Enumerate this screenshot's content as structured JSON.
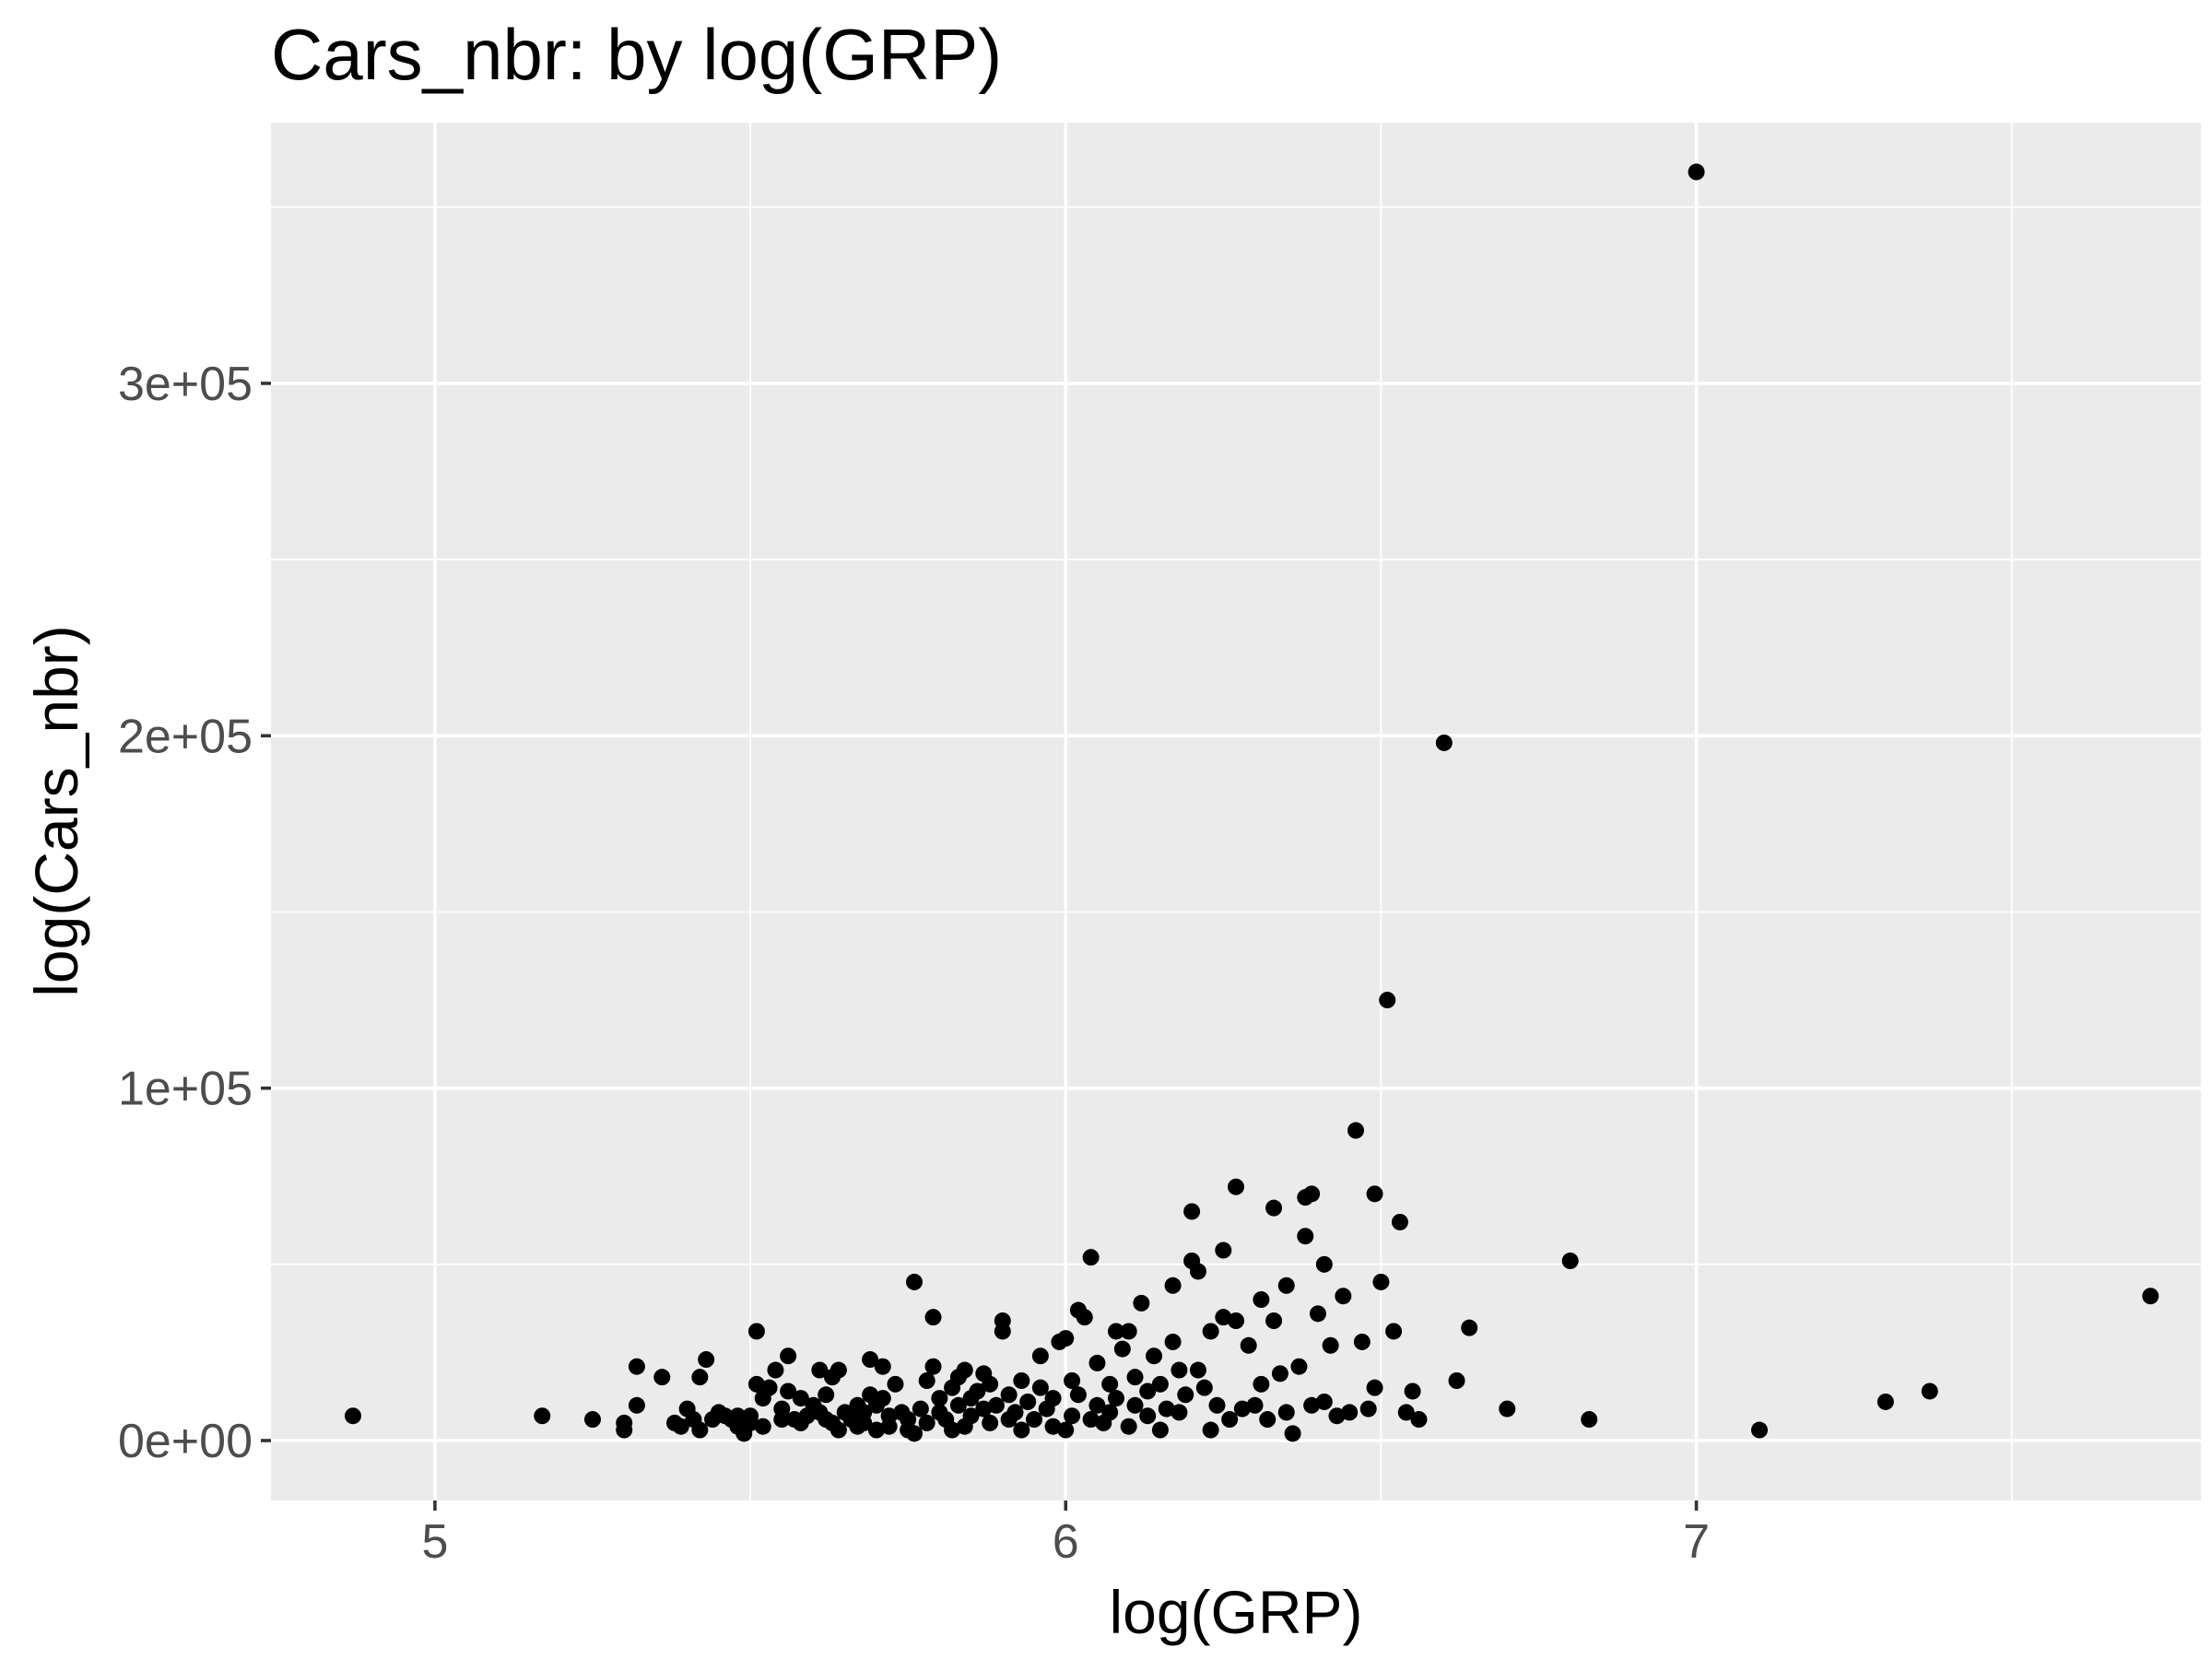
{
  "chart_data": {
    "type": "scatter",
    "title": "Cars_nbr: by log(GRP)",
    "xlabel": "log(GRP)",
    "ylabel": "log(Cars_nbr)",
    "xlim": [
      4.74,
      7.8
    ],
    "ylim": [
      -17000,
      374000
    ],
    "x_ticks": [
      5,
      6,
      7
    ],
    "x_tick_labels": [
      "5",
      "6",
      "7"
    ],
    "y_ticks": [
      0,
      100000,
      200000,
      300000
    ],
    "y_tick_labels": [
      "0e+00",
      "1e+05",
      "2e+05",
      "3e+05"
    ],
    "grid": true,
    "legend": "none",
    "colors": {
      "panel": "#ebebeb",
      "grid": "#ffffff",
      "point": "#000000",
      "tick_text": "#4d4d4d"
    },
    "points": [
      [
        4.87,
        7000
      ],
      [
        5.17,
        7000
      ],
      [
        5.25,
        6000
      ],
      [
        5.3,
        5000
      ],
      [
        5.3,
        3000
      ],
      [
        5.32,
        21000
      ],
      [
        5.32,
        10000
      ],
      [
        5.36,
        18000
      ],
      [
        5.38,
        5000
      ],
      [
        5.39,
        4000
      ],
      [
        5.4,
        9000
      ],
      [
        5.41,
        6000
      ],
      [
        5.42,
        3000
      ],
      [
        5.42,
        18000
      ],
      [
        5.43,
        23000
      ],
      [
        5.44,
        6000
      ],
      [
        5.45,
        8000
      ],
      [
        5.46,
        7000
      ],
      [
        5.47,
        6000
      ],
      [
        5.48,
        4000
      ],
      [
        5.48,
        7000
      ],
      [
        5.49,
        2000
      ],
      [
        5.5,
        5000
      ],
      [
        5.5,
        7000
      ],
      [
        5.51,
        16000
      ],
      [
        5.51,
        31000
      ],
      [
        5.52,
        4000
      ],
      [
        5.52,
        12000
      ],
      [
        5.53,
        15000
      ],
      [
        5.54,
        20000
      ],
      [
        5.55,
        6000
      ],
      [
        5.55,
        9000
      ],
      [
        5.56,
        24000
      ],
      [
        5.56,
        14000
      ],
      [
        5.57,
        6000
      ],
      [
        5.58,
        5000
      ],
      [
        5.58,
        12000
      ],
      [
        5.59,
        7000
      ],
      [
        5.6,
        10000
      ],
      [
        5.61,
        20000
      ],
      [
        5.61,
        8000
      ],
      [
        5.62,
        6000
      ],
      [
        5.62,
        13000
      ],
      [
        5.63,
        5000
      ],
      [
        5.63,
        18000
      ],
      [
        5.64,
        20000
      ],
      [
        5.64,
        3000
      ],
      [
        5.65,
        8000
      ],
      [
        5.66,
        6000
      ],
      [
        5.67,
        4000
      ],
      [
        5.67,
        10000
      ],
      [
        5.68,
        5000
      ],
      [
        5.68,
        8000
      ],
      [
        5.69,
        23000
      ],
      [
        5.69,
        13000
      ],
      [
        5.7,
        3000
      ],
      [
        5.7,
        10000
      ],
      [
        5.71,
        12000
      ],
      [
        5.71,
        21000
      ],
      [
        5.72,
        7000
      ],
      [
        5.72,
        4000
      ],
      [
        5.73,
        16000
      ],
      [
        5.74,
        8000
      ],
      [
        5.75,
        6000
      ],
      [
        5.75,
        3000
      ],
      [
        5.76,
        45000
      ],
      [
        5.76,
        2000
      ],
      [
        5.77,
        9000
      ],
      [
        5.78,
        5000
      ],
      [
        5.78,
        17000
      ],
      [
        5.79,
        35000
      ],
      [
        5.79,
        21000
      ],
      [
        5.8,
        8000
      ],
      [
        5.8,
        12000
      ],
      [
        5.81,
        6000
      ],
      [
        5.82,
        3000
      ],
      [
        5.82,
        15000
      ],
      [
        5.83,
        10000
      ],
      [
        5.83,
        18000
      ],
      [
        5.84,
        4000
      ],
      [
        5.84,
        20000
      ],
      [
        5.85,
        7000
      ],
      [
        5.85,
        12000
      ],
      [
        5.86,
        14000
      ],
      [
        5.87,
        9000
      ],
      [
        5.87,
        19000
      ],
      [
        5.88,
        5000
      ],
      [
        5.88,
        16000
      ],
      [
        5.89,
        10000
      ],
      [
        5.9,
        31000
      ],
      [
        5.9,
        34000
      ],
      [
        5.91,
        6000
      ],
      [
        5.91,
        13000
      ],
      [
        5.92,
        8000
      ],
      [
        5.93,
        17000
      ],
      [
        5.93,
        3000
      ],
      [
        5.94,
        11000
      ],
      [
        5.95,
        6000
      ],
      [
        5.96,
        24000
      ],
      [
        5.96,
        15000
      ],
      [
        5.97,
        9000
      ],
      [
        5.98,
        4000
      ],
      [
        5.98,
        12000
      ],
      [
        5.99,
        28000
      ],
      [
        6.0,
        29000
      ],
      [
        6.0,
        3000
      ],
      [
        6.01,
        17000
      ],
      [
        6.01,
        7000
      ],
      [
        6.02,
        13000
      ],
      [
        6.02,
        37000
      ],
      [
        6.03,
        35000
      ],
      [
        6.04,
        52000
      ],
      [
        6.04,
        6000
      ],
      [
        6.05,
        22000
      ],
      [
        6.05,
        10000
      ],
      [
        6.06,
        5000
      ],
      [
        6.07,
        16000
      ],
      [
        6.07,
        8000
      ],
      [
        6.08,
        31000
      ],
      [
        6.08,
        12000
      ],
      [
        6.09,
        26000
      ],
      [
        6.1,
        31000
      ],
      [
        6.1,
        4000
      ],
      [
        6.11,
        18000
      ],
      [
        6.11,
        10000
      ],
      [
        6.12,
        39000
      ],
      [
        6.13,
        7000
      ],
      [
        6.13,
        14000
      ],
      [
        6.14,
        24000
      ],
      [
        6.15,
        3000
      ],
      [
        6.15,
        16000
      ],
      [
        6.16,
        9000
      ],
      [
        6.17,
        44000
      ],
      [
        6.17,
        28000
      ],
      [
        6.18,
        8000
      ],
      [
        6.18,
        20000
      ],
      [
        6.19,
        13000
      ],
      [
        6.2,
        51000
      ],
      [
        6.2,
        65000
      ],
      [
        6.21,
        48000
      ],
      [
        6.21,
        20000
      ],
      [
        6.22,
        15000
      ],
      [
        6.23,
        31000
      ],
      [
        6.23,
        3000
      ],
      [
        6.24,
        10000
      ],
      [
        6.25,
        54000
      ],
      [
        6.25,
        35000
      ],
      [
        6.26,
        6000
      ],
      [
        6.27,
        72000
      ],
      [
        6.27,
        34000
      ],
      [
        6.28,
        9000
      ],
      [
        6.29,
        27000
      ],
      [
        6.3,
        10000
      ],
      [
        6.31,
        40000
      ],
      [
        6.31,
        16000
      ],
      [
        6.32,
        6000
      ],
      [
        6.33,
        66000
      ],
      [
        6.33,
        34000
      ],
      [
        6.34,
        19000
      ],
      [
        6.35,
        8000
      ],
      [
        6.35,
        44000
      ],
      [
        6.36,
        2000
      ],
      [
        6.37,
        21000
      ],
      [
        6.38,
        58000
      ],
      [
        6.38,
        69000
      ],
      [
        6.39,
        10000
      ],
      [
        6.39,
        70000
      ],
      [
        6.4,
        36000
      ],
      [
        6.41,
        50000
      ],
      [
        6.41,
        11000
      ],
      [
        6.42,
        27000
      ],
      [
        6.43,
        7000
      ],
      [
        6.44,
        41000
      ],
      [
        6.45,
        8000
      ],
      [
        6.46,
        88000
      ],
      [
        6.47,
        28000
      ],
      [
        6.48,
        9000
      ],
      [
        6.49,
        15000
      ],
      [
        6.49,
        70000
      ],
      [
        6.5,
        45000
      ],
      [
        6.51,
        125000
      ],
      [
        6.52,
        31000
      ],
      [
        6.53,
        62000
      ],
      [
        6.54,
        8000
      ],
      [
        6.55,
        14000
      ],
      [
        6.56,
        6000
      ],
      [
        6.6,
        198000
      ],
      [
        6.62,
        17000
      ],
      [
        6.64,
        32000
      ],
      [
        6.7,
        9000
      ],
      [
        6.8,
        51000
      ],
      [
        6.83,
        6000
      ],
      [
        7.0,
        360000
      ],
      [
        7.1,
        3000
      ],
      [
        7.3,
        11000
      ],
      [
        7.37,
        14000
      ],
      [
        7.72,
        41000
      ]
    ]
  }
}
